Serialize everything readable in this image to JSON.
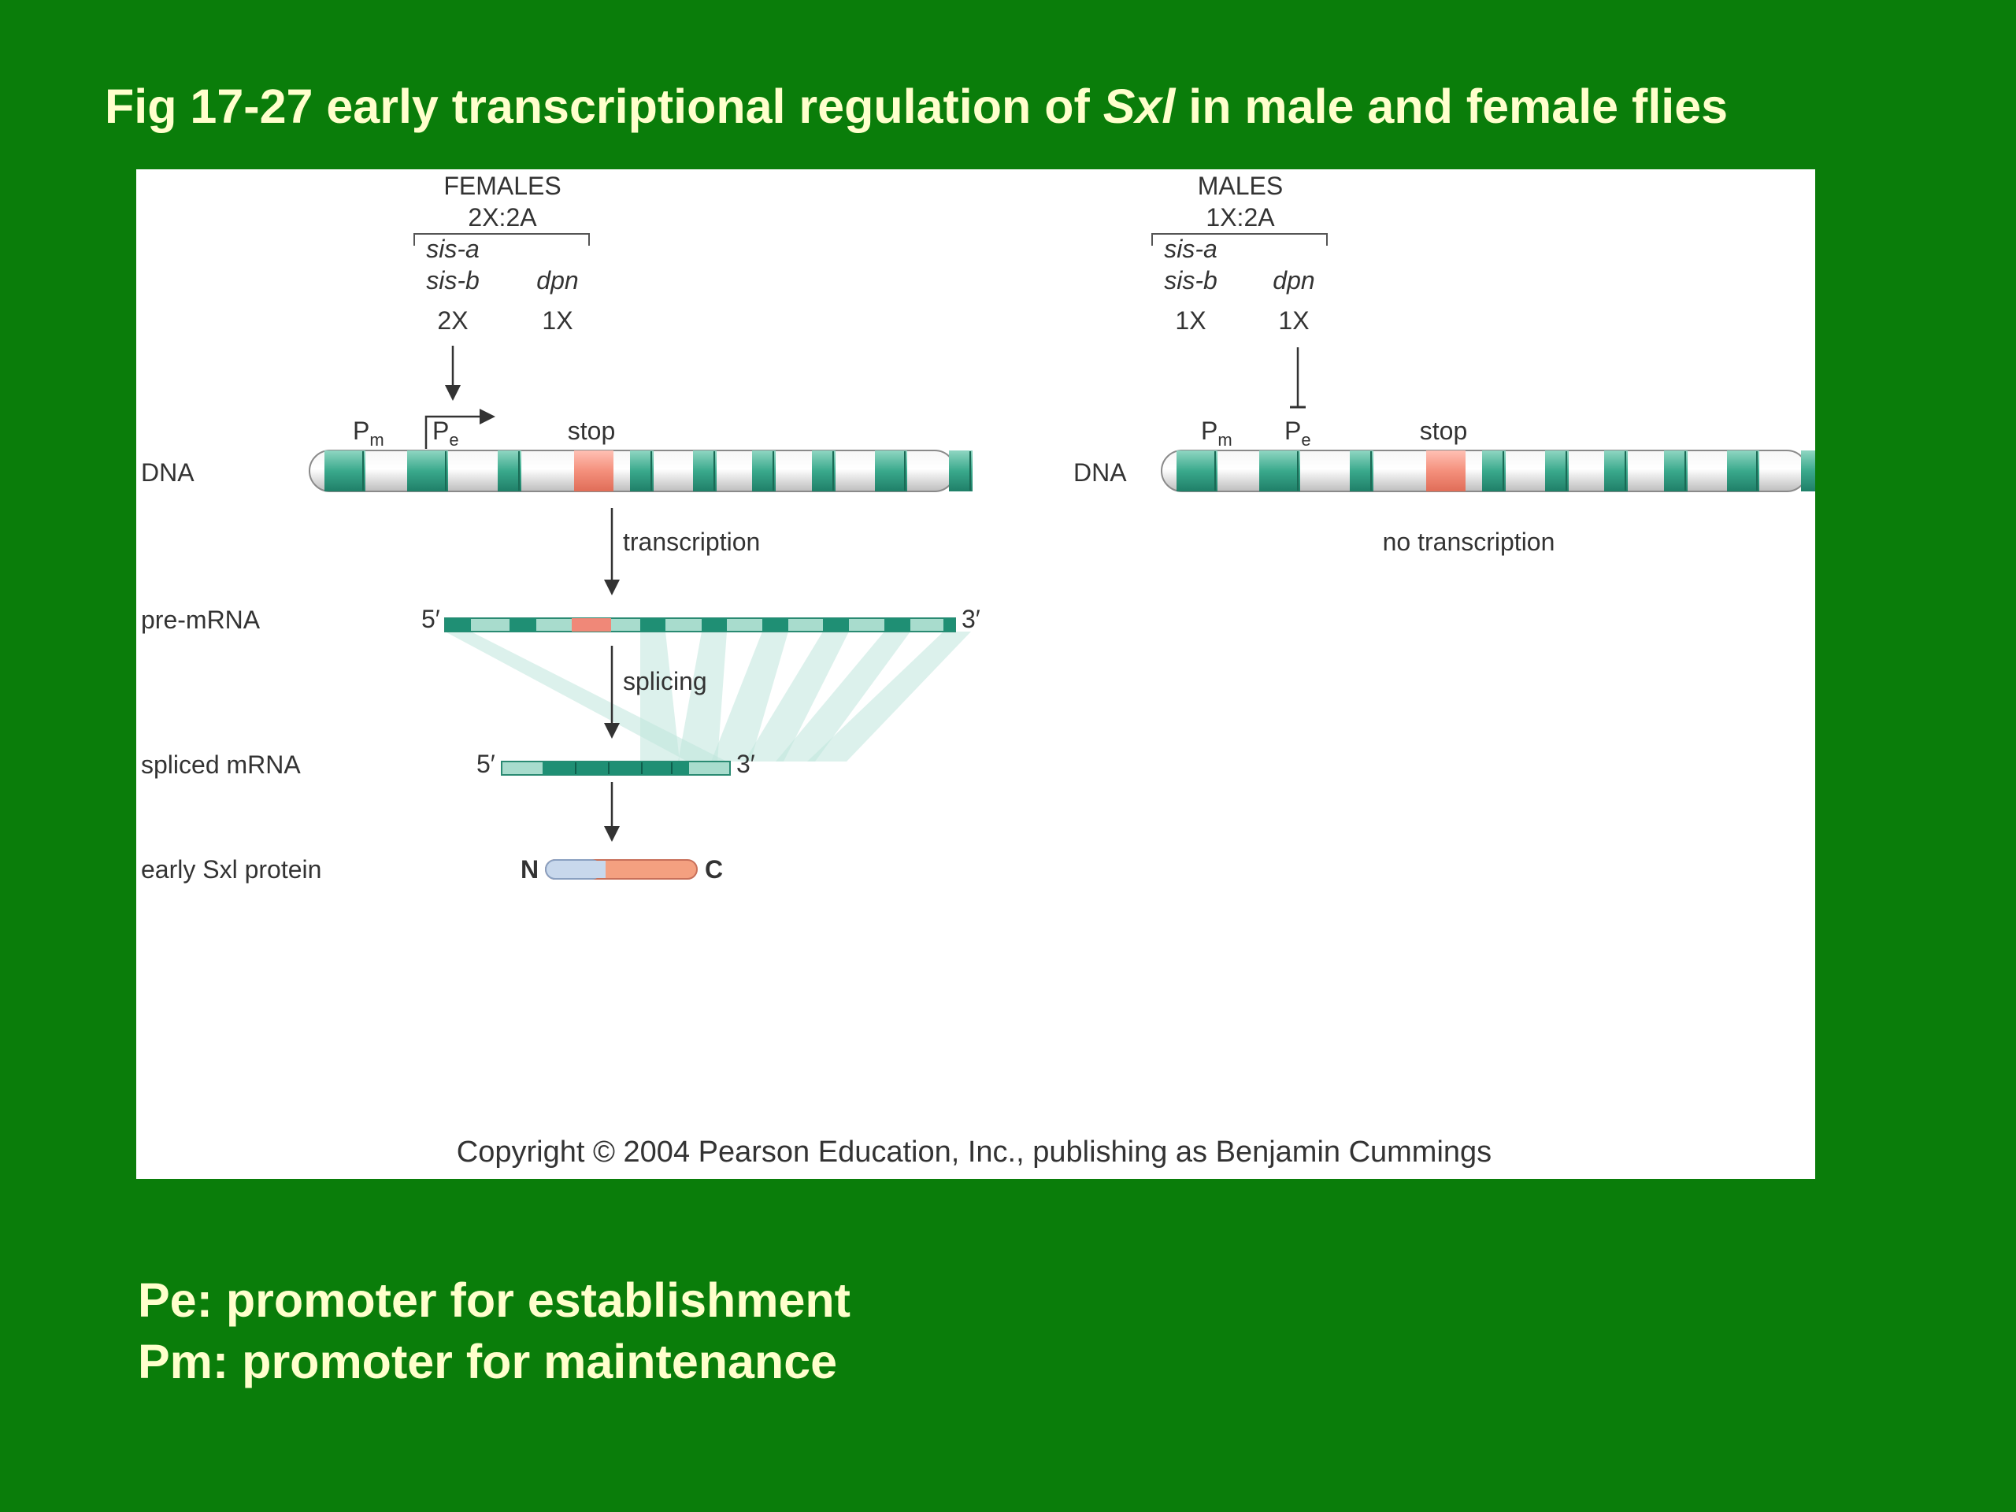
{
  "title": {
    "prefix": "Fig 17-27 early transcriptional regulation of ",
    "gene": "Sxl",
    "suffix": " in male and female flies"
  },
  "female": {
    "heading": "FEMALES",
    "ratio": "2X:2A",
    "gene_a": "sis-a",
    "gene_b": "sis-b",
    "gene_c": "dpn",
    "dose_ab": "2X",
    "dose_c": "1X",
    "pm_main": "P",
    "pm_sub": "m",
    "pe_main": "P",
    "pe_sub": "e",
    "stop": "stop",
    "dna": "DNA",
    "transcription": "transcription",
    "pre_mrna": "pre-mRNA",
    "five_prime": "5′",
    "three_prime": "3′",
    "splicing": "splicing",
    "spliced_mrna": "spliced mRNA",
    "spliced_five": "5′",
    "spliced_three": "3′",
    "protein_label": "early Sxl protein",
    "n_term": "N",
    "c_term": "C"
  },
  "male": {
    "heading": "MALES",
    "ratio": "1X:2A",
    "gene_a": "sis-a",
    "gene_b": "sis-b",
    "gene_c": "dpn",
    "dose_ab": "1X",
    "dose_c": "1X",
    "pm_main": "P",
    "pm_sub": "m",
    "pe_main": "P",
    "pe_sub": "e",
    "stop": "stop",
    "dna": "DNA",
    "no_transcription": "no transcription"
  },
  "copyright": "Copyright © 2004 Pearson Education, Inc., publishing as Benjamin Cummings",
  "notes": [
    "Pe: promoter for establishment",
    "Pm: promoter for maintenance"
  ],
  "colors": {
    "background": "#0a7d0a",
    "title_text": "#ffffcc",
    "exon": "#2a9a80",
    "stop_exon": "#f08878",
    "dna_body": "#d8dad8",
    "protein_n": "#c8d8ec",
    "protein_c": "#f4a080"
  }
}
